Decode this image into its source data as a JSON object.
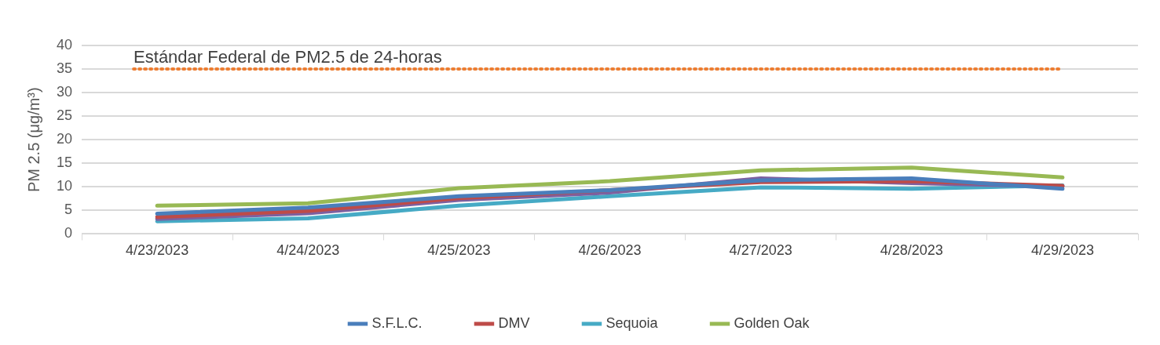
{
  "chart_data": {
    "type": "line",
    "ylabel": "PM 2.5 (μg/m³)",
    "categories": [
      "4/23/2023",
      "4/24/2023",
      "4/25/2023",
      "4/26/2023",
      "4/27/2023",
      "4/28/2023",
      "4/29/2023"
    ],
    "series": [
      {
        "name": "S.F.L.C.",
        "color": "#4a7ebb",
        "values": [
          4.3,
          5.6,
          8.0,
          9.3,
          11.4,
          11.8,
          9.6
        ]
      },
      {
        "name": "DMV",
        "color": "#be4b48",
        "values": [
          3.6,
          4.9,
          7.6,
          9.3,
          11.0,
          11.2,
          10.2
        ]
      },
      {
        "color": "#7d60a0",
        "values": [
          3.2,
          4.4,
          7.2,
          8.8,
          11.8,
          10.8,
          10.1
        ]
      },
      {
        "name": "Sequoia",
        "color": "#46aac5",
        "values": [
          2.7,
          3.3,
          6.0,
          8.0,
          9.9,
          9.6,
          10.3
        ]
      },
      {
        "name": "Golden Oak",
        "color": "#98b954",
        "values": [
          6.0,
          6.5,
          9.7,
          11.2,
          13.5,
          14.1,
          12.0
        ]
      }
    ],
    "ylim": [
      0,
      40
    ],
    "yticks": [
      0,
      5,
      10,
      15,
      20,
      25,
      30,
      35,
      40
    ],
    "grid": "y",
    "legend": "bottom",
    "marker": "none",
    "line_style": "solid",
    "ref_lines": [
      {
        "axis": "y",
        "value": 35,
        "label": "Estándar Federal de PM2.5 de 24-horas",
        "color": "#ed7d31",
        "line_style": "dotted"
      }
    ]
  }
}
